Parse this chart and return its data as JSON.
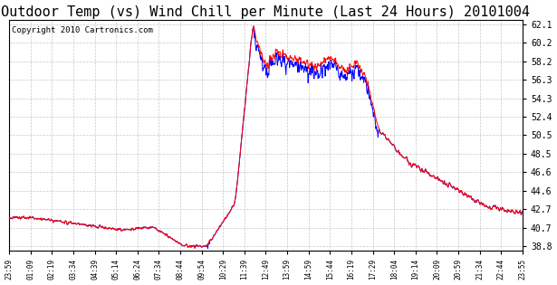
{
  "title": "Outdoor Temp (vs) Wind Chill per Minute (Last 24 Hours) 20101004",
  "copyright": "Copyright 2010 Cartronics.com",
  "y_ticks": [
    38.8,
    40.7,
    42.7,
    44.6,
    46.6,
    48.5,
    50.5,
    52.4,
    54.3,
    56.3,
    58.2,
    60.2,
    62.1
  ],
  "x_tick_labels": [
    "23:59",
    "01:09",
    "02:19",
    "03:34",
    "04:39",
    "05:14",
    "06:24",
    "07:34",
    "08:44",
    "09:54",
    "10:29",
    "11:39",
    "12:49",
    "13:59",
    "14:59",
    "15:44",
    "16:19",
    "17:29",
    "18:04",
    "19:14",
    "20:09",
    "20:59",
    "21:34",
    "22:44",
    "23:55"
  ],
  "y_min": 38.8,
  "y_max": 62.1,
  "background_color": "#ffffff",
  "plot_bg_color": "#ffffff",
  "grid_color": "#c8c8c8",
  "line_color_red": "#ff0000",
  "line_color_blue": "#0000ff",
  "title_fontsize": 11,
  "copyright_fontsize": 6.5
}
